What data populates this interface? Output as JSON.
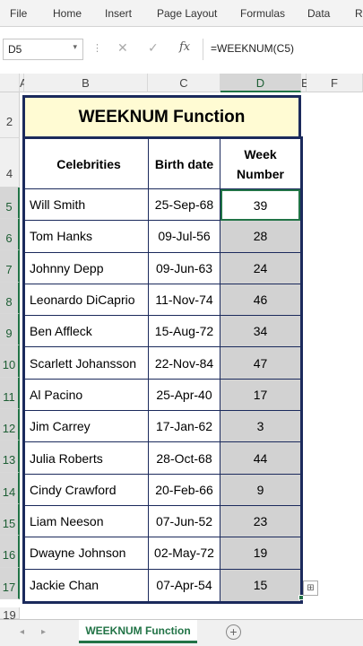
{
  "ribbon": {
    "tabs": [
      "File",
      "Home",
      "Insert",
      "Page Layout",
      "Formulas",
      "Data",
      "Re"
    ]
  },
  "formula_bar": {
    "name_box": "D5",
    "fx_label": "fx",
    "formula": "=WEEKNUM(C5)"
  },
  "columns": [
    "A",
    "B",
    "C",
    "D",
    "E",
    "F"
  ],
  "rows": [
    "2",
    "4",
    "5",
    "6",
    "7",
    "8",
    "9",
    "10",
    "11",
    "12",
    "13",
    "14",
    "15",
    "16",
    "17",
    "19"
  ],
  "title": "WEEKNUM Function",
  "table": {
    "headers": {
      "celebrities": "Celebrities",
      "birth_date": "Birth date",
      "week_number_line1": "Week",
      "week_number_line2": "Number"
    },
    "rows": [
      {
        "name": "Will Smith",
        "date": "25-Sep-68",
        "week": "39"
      },
      {
        "name": "Tom Hanks",
        "date": "09-Jul-56",
        "week": "28"
      },
      {
        "name": "Johnny Depp",
        "date": "09-Jun-63",
        "week": "24"
      },
      {
        "name": "Leonardo DiCaprio",
        "date": "11-Nov-74",
        "week": "46"
      },
      {
        "name": "Ben Affleck",
        "date": "15-Aug-72",
        "week": "34"
      },
      {
        "name": "Scarlett Johansson",
        "date": "22-Nov-84",
        "week": "47"
      },
      {
        "name": "Al Pacino",
        "date": "25-Apr-40",
        "week": "17"
      },
      {
        "name": "Jim Carrey",
        "date": "17-Jan-62",
        "week": "3"
      },
      {
        "name": "Julia Roberts",
        "date": "28-Oct-68",
        "week": "44"
      },
      {
        "name": "Cindy Crawford",
        "date": "20-Feb-66",
        "week": "9"
      },
      {
        "name": "Liam Neeson",
        "date": "07-Jun-52",
        "week": "23"
      },
      {
        "name": "Dwayne Johnson",
        "date": "02-May-72",
        "week": "19"
      },
      {
        "name": "Jackie Chan",
        "date": "07-Apr-54",
        "week": "15"
      }
    ]
  },
  "sheet_tab": "WEEKNUM Function",
  "icons": {
    "cancel": "✕",
    "enter": "✓",
    "add_sheet": "+",
    "nav_prev": "◂",
    "nav_next": "▸",
    "dropdown": "▾",
    "quick_analysis": "⊞"
  },
  "colors": {
    "accent": "#217346",
    "title_fill": "#fffbd3",
    "border": "#1b2a5c",
    "selection_fill": "#d2d2d2"
  }
}
